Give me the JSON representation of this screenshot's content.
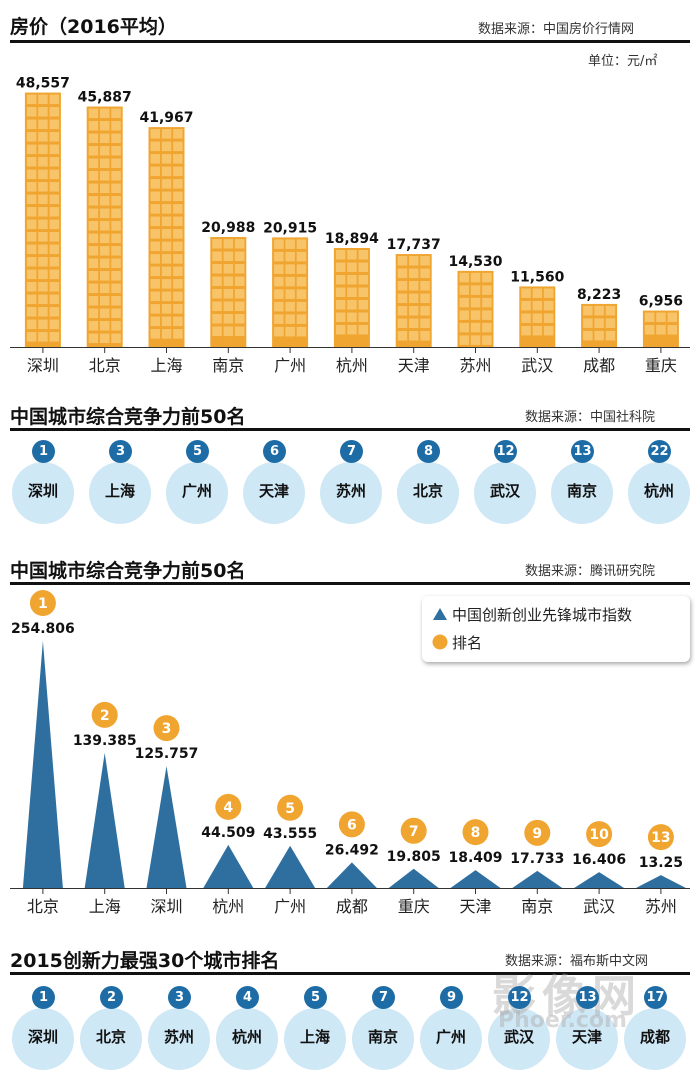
{
  "section1": {
    "title": "房价（2016平均）",
    "source": "数据来源：中国房价行情网",
    "unit": "单位：元/㎡"
  },
  "section2": {
    "title": "中国城市综合竞争力前50名",
    "source": "数据来源：中国社科院"
  },
  "section3": {
    "title": "中国城市综合竞争力前50名",
    "source": "数据来源：腾讯研究院",
    "legend_index": "中国创新创业先锋城市指数",
    "legend_rank": "排名"
  },
  "section4": {
    "title": "2015创新力最强30个城市排名",
    "source": "数据来源：福布斯中文网"
  },
  "watermark": "影像网",
  "watermark_sub": "Phoer.com",
  "colors": {
    "bar": "#f0a530",
    "bar_cell": "#f8c46a",
    "triangle": "#2f6f9f",
    "rank_orange": "#f0a530",
    "rank_blue": "#1e6ca6",
    "circle_bg": "#cfe8f6"
  },
  "chart_data": [
    {
      "type": "bar",
      "title": "房价（2016平均）",
      "ylabel": "单位：元/㎡",
      "categories": [
        "深圳",
        "北京",
        "上海",
        "南京",
        "广州",
        "杭州",
        "天津",
        "苏州",
        "武汉",
        "成都",
        "重庆"
      ],
      "values": [
        48557,
        45887,
        41967,
        20988,
        20915,
        18894,
        17737,
        14530,
        11560,
        8223,
        6956
      ],
      "labels": [
        "48,557",
        "45,887",
        "41,967",
        "20,988",
        "20,915",
        "18,894",
        "17,737",
        "14,530",
        "11,560",
        "8,223",
        "6,956"
      ],
      "ylim": [
        0,
        50000
      ],
      "grid": false
    },
    {
      "type": "table",
      "title": "中国城市综合竞争力前50名",
      "items": [
        {
          "rank": "1",
          "city": "深圳"
        },
        {
          "rank": "3",
          "city": "上海"
        },
        {
          "rank": "5",
          "city": "广州"
        },
        {
          "rank": "6",
          "city": "天津"
        },
        {
          "rank": "7",
          "city": "苏州"
        },
        {
          "rank": "8",
          "city": "北京"
        },
        {
          "rank": "12",
          "city": "武汉"
        },
        {
          "rank": "13",
          "city": "南京"
        },
        {
          "rank": "22",
          "city": "杭州"
        }
      ]
    },
    {
      "type": "bar",
      "title": "中国城市综合竞争力前50名",
      "categories": [
        "北京",
        "上海",
        "深圳",
        "杭州",
        "广州",
        "成都",
        "重庆",
        "天津",
        "南京",
        "武汉",
        "苏州"
      ],
      "series": [
        {
          "name": "中国创新创业先锋城市指数",
          "values": [
            254.806,
            139.385,
            125.757,
            44.509,
            43.555,
            26.492,
            19.805,
            18.409,
            17.733,
            16.406,
            13.25
          ]
        },
        {
          "name": "排名",
          "values": [
            1,
            2,
            3,
            4,
            5,
            6,
            7,
            8,
            9,
            10,
            13
          ]
        }
      ],
      "labels": [
        "254.806",
        "139.385",
        "125.757",
        "44.509",
        "43.555",
        "26.492",
        "19.805",
        "18.409",
        "17.733",
        "16.406",
        "13.25"
      ],
      "ranks": [
        "1",
        "2",
        "3",
        "4",
        "5",
        "6",
        "7",
        "8",
        "9",
        "10",
        "13"
      ],
      "ylim": [
        0,
        260
      ],
      "legend": "top-right"
    },
    {
      "type": "table",
      "title": "2015创新力最强30个城市排名",
      "items": [
        {
          "rank": "1",
          "city": "深圳"
        },
        {
          "rank": "2",
          "city": "北京"
        },
        {
          "rank": "3",
          "city": "苏州"
        },
        {
          "rank": "4",
          "city": "杭州"
        },
        {
          "rank": "5",
          "city": "上海"
        },
        {
          "rank": "7",
          "city": "南京"
        },
        {
          "rank": "9",
          "city": "广州"
        },
        {
          "rank": "12",
          "city": "武汉"
        },
        {
          "rank": "13",
          "city": "天津"
        },
        {
          "rank": "17",
          "city": "成都"
        }
      ]
    }
  ]
}
